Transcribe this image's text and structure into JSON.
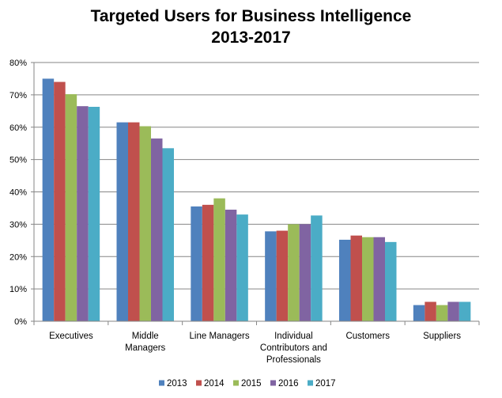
{
  "chart_data": {
    "type": "bar",
    "title": [
      "Targeted Users for Business Intelligence",
      "2013-2017"
    ],
    "categories": [
      [
        "Executives"
      ],
      [
        "Middle",
        "Managers"
      ],
      [
        "Line Managers"
      ],
      [
        "Individual",
        "Contributors and",
        "Professionals"
      ],
      [
        "Customers"
      ],
      [
        "Suppliers"
      ]
    ],
    "series": [
      {
        "name": "2013",
        "color": "#4f81bd",
        "values": [
          75,
          61.5,
          35.5,
          27.8,
          25.2,
          5
        ]
      },
      {
        "name": "2014",
        "color": "#c0504d",
        "values": [
          74,
          61.5,
          36,
          28,
          26.5,
          6
        ]
      },
      {
        "name": "2015",
        "color": "#9bbb59",
        "values": [
          70.2,
          60.3,
          38,
          30,
          26,
          5
        ]
      },
      {
        "name": "2016",
        "color": "#8064a2",
        "values": [
          66.5,
          56.5,
          34.5,
          30,
          26,
          6
        ]
      },
      {
        "name": "2017",
        "color": "#4bacc6",
        "values": [
          66.3,
          53.5,
          33,
          32.7,
          24.5,
          6
        ]
      }
    ],
    "ylim": [
      0,
      80
    ],
    "ytick_step": 10,
    "yticks": [
      "0%",
      "10%",
      "20%",
      "30%",
      "40%",
      "50%",
      "60%",
      "70%",
      "80%"
    ],
    "grid": true,
    "legend_position": "bottom"
  }
}
